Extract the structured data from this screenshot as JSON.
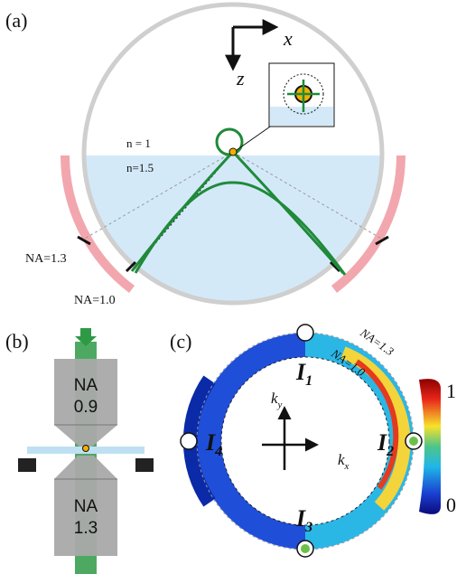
{
  "panel_a": {
    "label": "(a)",
    "axes": {
      "x": "x",
      "z": "z"
    },
    "media": [
      "n = 1",
      "n=1.5"
    ],
    "na_labels": [
      "NA=1.3",
      "NA=1.0"
    ]
  },
  "panel_b": {
    "label": "(b)",
    "objectives": [
      {
        "name": "NA",
        "value": "0.9"
      },
      {
        "name": "NA",
        "value": "1.3"
      }
    ]
  },
  "panel_c": {
    "label": "(c)",
    "na_labels": [
      "NA=1.3",
      "NA=1.0"
    ],
    "intensities": [
      {
        "symbol": "I",
        "index": "1"
      },
      {
        "symbol": "I",
        "index": "2"
      },
      {
        "symbol": "I",
        "index": "3"
      },
      {
        "symbol": "I",
        "index": "4"
      }
    ],
    "k_axes": [
      {
        "symbol": "k",
        "index": "y"
      },
      {
        "symbol": "k",
        "index": "x"
      }
    ],
    "colorbar": [
      "1",
      "0"
    ]
  }
}
